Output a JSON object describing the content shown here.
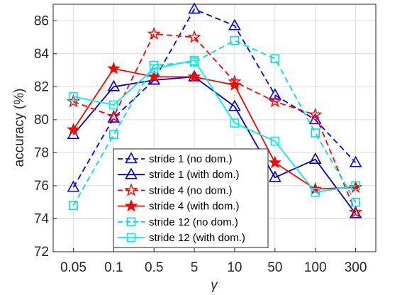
{
  "chart_data": {
    "type": "line",
    "title": "",
    "xlabel": "γ",
    "ylabel": "accuracy (%)",
    "categories": [
      "0.05",
      "0.1",
      "0.5",
      "5",
      "10",
      "50",
      "100",
      "300"
    ],
    "ylim": [
      72,
      87
    ],
    "yticks": [
      72,
      74,
      76,
      78,
      80,
      82,
      84,
      86
    ],
    "grid": true,
    "legend_placement": "bottom-center",
    "series": [
      {
        "name": "stride 1 (no dom.)",
        "color": "#0000ff",
        "dash": "dashed",
        "marker": "triangle",
        "values": [
          75.9,
          80.1,
          82.4,
          86.7,
          85.7,
          81.5,
          80.0,
          77.4
        ]
      },
      {
        "name": "stride 1 (with dom.)",
        "color": "#0000cc",
        "dash": "solid",
        "marker": "triangle",
        "values": [
          79.1,
          82.0,
          82.4,
          82.6,
          80.8,
          76.5,
          77.6,
          74.3
        ]
      },
      {
        "name": "stride 4 (no dom.)",
        "color": "#ff0000",
        "dash": "dashed",
        "marker": "star-open",
        "values": [
          81.1,
          80.2,
          85.2,
          85.0,
          82.3,
          81.1,
          80.3,
          74.4
        ]
      },
      {
        "name": "stride 4 (with dom.)",
        "color": "#ff0000",
        "dash": "solid",
        "marker": "star-filled",
        "values": [
          79.4,
          83.1,
          82.6,
          82.6,
          82.1,
          77.4,
          75.8,
          75.9
        ]
      },
      {
        "name": "stride 12 (no dom.)",
        "color": "#00dddd",
        "dash": "dashed",
        "marker": "square",
        "values": [
          74.8,
          79.1,
          83.3,
          83.5,
          84.8,
          83.7,
          79.2,
          75.0
        ]
      },
      {
        "name": "stride 12 (with dom.)",
        "color": "#00eeee",
        "dash": "solid",
        "marker": "square",
        "values": [
          81.4,
          80.9,
          83.1,
          83.6,
          79.8,
          78.7,
          75.6,
          76.0
        ]
      }
    ]
  }
}
